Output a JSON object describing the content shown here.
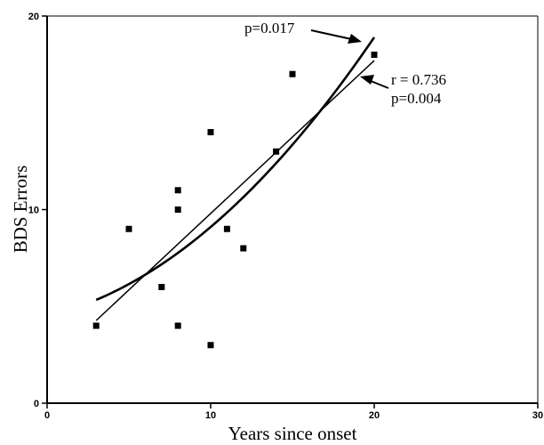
{
  "chart_data": {
    "type": "scatter",
    "xlabel": "Years since onset",
    "ylabel": "BDS Errors",
    "xlim": [
      0,
      30
    ],
    "ylim": [
      0,
      20
    ],
    "x_ticks": [
      "0",
      "10",
      "20",
      "30"
    ],
    "y_ticks": [
      "0",
      "10",
      "20"
    ],
    "grid": false,
    "points": [
      {
        "x": 3,
        "y": 4
      },
      {
        "x": 5,
        "y": 9
      },
      {
        "x": 7,
        "y": 6
      },
      {
        "x": 8,
        "y": 11
      },
      {
        "x": 8,
        "y": 10
      },
      {
        "x": 8,
        "y": 4
      },
      {
        "x": 10,
        "y": 14
      },
      {
        "x": 10,
        "y": 3
      },
      {
        "x": 11,
        "y": 9
      },
      {
        "x": 12,
        "y": 8
      },
      {
        "x": 14,
        "y": 13
      },
      {
        "x": 15,
        "y": 17
      },
      {
        "x": 20,
        "y": 18
      }
    ],
    "fits": [
      {
        "label": "p=0.017",
        "kind": "quadratic",
        "x_start": 3,
        "x_end": 20,
        "coefficients": [
          4.5,
          0.2,
          0.026
        ]
      },
      {
        "label": "r = 0.736",
        "sublabel": "p=0.004",
        "kind": "linear",
        "x_start": 3,
        "x_end": 20,
        "coefficients": [
          1.9,
          0.79
        ]
      }
    ]
  }
}
